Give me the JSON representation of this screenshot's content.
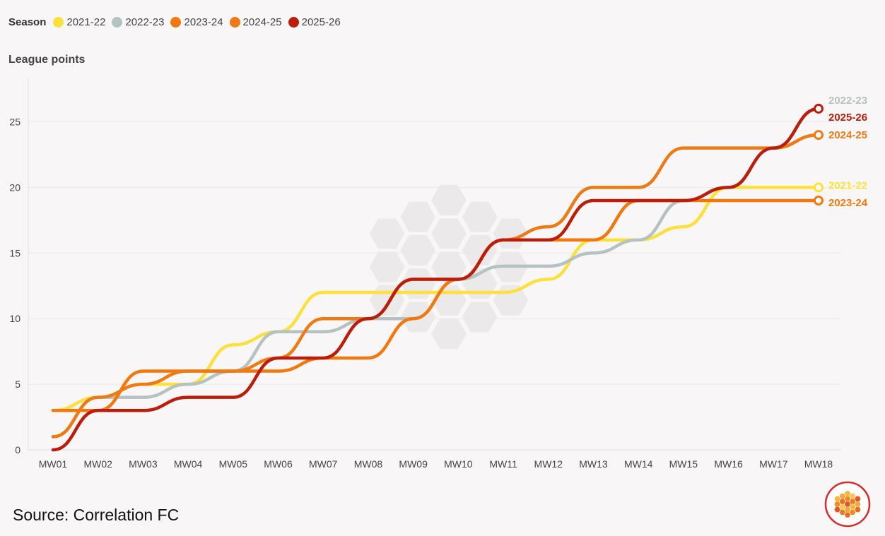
{
  "legend": {
    "title": "Season"
  },
  "y_axis_title": "League points",
  "source": "Source: Correlation FC",
  "colors": {
    "2021-22": "#fde03a",
    "2022-23": "#b4c2c1",
    "2023-24": "#f2780c",
    "2024-25": "#ee7a14",
    "2025-26": "#bb1d0a"
  },
  "chart_data": {
    "type": "line",
    "xlabel": "",
    "ylabel": "League points",
    "ylim": [
      0,
      27
    ],
    "yticks": [
      0,
      5,
      10,
      15,
      20,
      25
    ],
    "grid": "horizontal",
    "legend_position": "top-left",
    "categories": [
      "MW01",
      "MW02",
      "MW03",
      "MW04",
      "MW05",
      "MW06",
      "MW07",
      "MW08",
      "MW09",
      "MW10",
      "MW11",
      "MW12",
      "MW13",
      "MW14",
      "MW15",
      "MW16",
      "MW17",
      "MW18"
    ],
    "series": [
      {
        "name": "2021-22",
        "color": "#fde03a",
        "values": [
          3,
          4,
          5,
          5,
          8,
          9,
          12,
          12,
          12,
          12,
          12,
          13,
          16,
          16,
          17,
          20,
          20,
          20
        ],
        "end_label": "2021-22"
      },
      {
        "name": "2022-23",
        "color": "#b4c2c1",
        "values": [
          1,
          4,
          4,
          5,
          6,
          9,
          9,
          10,
          10,
          13,
          14,
          14,
          15,
          16,
          19,
          20,
          23,
          26
        ],
        "end_label": "2022-23"
      },
      {
        "name": "2023-24",
        "color": "#f2780c",
        "values": [
          3,
          3,
          6,
          6,
          6,
          6,
          7,
          7,
          10,
          13,
          16,
          16,
          16,
          19,
          19,
          19,
          19,
          19
        ],
        "end_label": "2023-24"
      },
      {
        "name": "2024-25",
        "color": "#ee7a14",
        "values": [
          1,
          4,
          5,
          6,
          6,
          7,
          10,
          10,
          13,
          13,
          16,
          17,
          20,
          20,
          23,
          23,
          23,
          24
        ],
        "end_label": "2024-25"
      },
      {
        "name": "2025-26",
        "color": "#bb1d0a",
        "values": [
          0,
          3,
          3,
          4,
          4,
          7,
          7,
          10,
          13,
          13,
          16,
          16,
          19,
          19,
          19,
          20,
          23,
          26
        ],
        "end_label": "2025-26"
      }
    ]
  }
}
